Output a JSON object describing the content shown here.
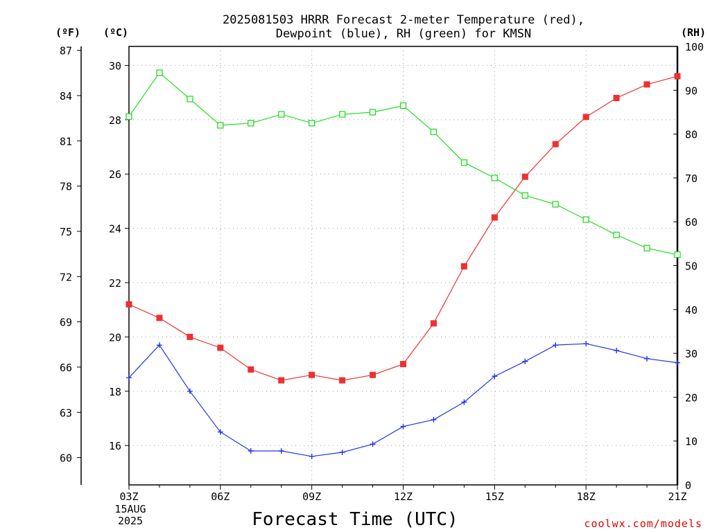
{
  "chart_data": {
    "type": "line",
    "title": [
      "2025081503 HRRR Forecast 2-meter Temperature (red),",
      "Dewpoint (blue), RH (green) for KMSN"
    ],
    "xlabel": "Forecast Time (UTC)",
    "x": [
      "03Z",
      "04Z",
      "05Z",
      "06Z",
      "07Z",
      "08Z",
      "09Z",
      "10Z",
      "11Z",
      "12Z",
      "13Z",
      "14Z",
      "15Z",
      "16Z",
      "17Z",
      "18Z",
      "19Z",
      "20Z",
      "21Z"
    ],
    "x_tick_labels": [
      "03Z",
      "06Z",
      "09Z",
      "12Z",
      "15Z",
      "18Z",
      "21Z"
    ],
    "x_date_label": [
      "15AUG",
      "2025"
    ],
    "left_axis_c": {
      "unit_label": "(ºC)",
      "ticks": [
        "16",
        "18",
        "20",
        "22",
        "24",
        "26",
        "28",
        "30"
      ],
      "range": [
        14.55,
        30.7
      ]
    },
    "left_axis_f": {
      "unit_label": "(ºF)",
      "ticks": [
        "60",
        "63",
        "66",
        "69",
        "72",
        "75",
        "78",
        "81",
        "84",
        "87"
      ]
    },
    "right_axis_rh": {
      "unit_label": "(RH)",
      "ticks": [
        "0",
        "10",
        "20",
        "30",
        "40",
        "50",
        "60",
        "70",
        "80",
        "90",
        "100"
      ],
      "range": [
        0,
        100
      ]
    },
    "grid": true,
    "series": [
      {
        "name": "Temperature",
        "axis": "C",
        "color": "#ee3030",
        "marker": "filled-square",
        "values": [
          21.2,
          20.7,
          20.0,
          19.6,
          18.8,
          18.4,
          18.6,
          18.4,
          18.6,
          19.0,
          20.5,
          22.6,
          24.4,
          25.9,
          27.1,
          28.1,
          28.8,
          29.3,
          29.6
        ]
      },
      {
        "name": "Dewpoint",
        "axis": "C",
        "color": "#2233ee",
        "marker": "plus",
        "values": [
          18.5,
          19.7,
          18.0,
          16.5,
          15.8,
          15.8,
          15.6,
          15.75,
          16.05,
          16.7,
          16.95,
          17.6,
          18.55,
          19.1,
          19.7,
          19.75,
          19.5,
          19.2,
          19.05
        ]
      },
      {
        "name": "RH",
        "axis": "RH",
        "color": "#22dd22",
        "marker": "open-square",
        "values": [
          84,
          94,
          88,
          82,
          82.5,
          84.5,
          82.5,
          84.5,
          85,
          86.5,
          80.5,
          73.5,
          70,
          66,
          64,
          60.5,
          57,
          54,
          52.5
        ]
      }
    ]
  },
  "footer": "coolwx.com/models"
}
